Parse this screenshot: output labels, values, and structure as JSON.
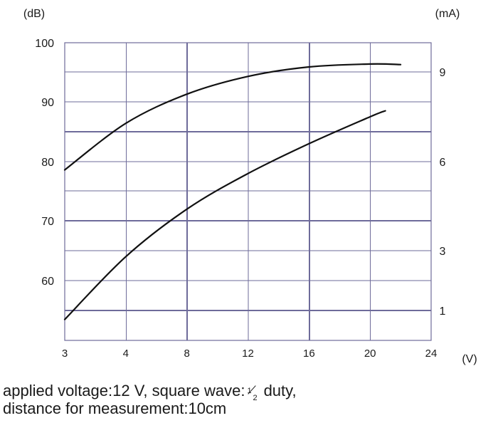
{
  "chart_data": {
    "type": "line",
    "left_unit": "(dB)",
    "right_unit": "(mA)",
    "x_unit": "(V)",
    "x_ticks": [
      "3",
      "4",
      "8",
      "12",
      "16",
      "20",
      "24"
    ],
    "left_ticks": [
      "100",
      "90",
      "80",
      "70",
      "60"
    ],
    "right_ticks": [
      "9",
      "6",
      "3",
      "1"
    ],
    "grid": true,
    "series": [
      {
        "axis": "left",
        "points": [
          {
            "x": "3",
            "y": 78.6
          },
          {
            "x": "4",
            "y": 86.4
          },
          {
            "x": "8",
            "y": 91.3
          },
          {
            "x": "12",
            "y": 94.3
          },
          {
            "x": "16",
            "y": 95.9
          },
          {
            "x": "20",
            "y": 96.4
          },
          {
            "x": "22",
            "y": 96.3
          }
        ]
      },
      {
        "axis": "right",
        "points": [
          {
            "x": "3",
            "y": 0.7
          },
          {
            "x": "4",
            "y": 2.8
          },
          {
            "x": "8",
            "y": 4.4
          },
          {
            "x": "12",
            "y": 5.6
          },
          {
            "x": "16",
            "y": 6.6
          },
          {
            "x": "20",
            "y": 7.5
          },
          {
            "x": "21",
            "y": 7.7
          }
        ]
      }
    ]
  },
  "caption": {
    "line1_before": "applied voltage:12 V, square wave:",
    "duty_numerator": "1",
    "duty_denominator": "2",
    "line1_after": "duty,",
    "line2": "distance for measurement:10cm"
  }
}
